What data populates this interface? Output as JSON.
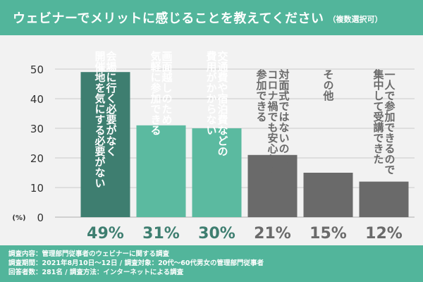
{
  "header": {
    "title": "ウェビナーでメリットに感じることを教えてください",
    "subtitle": "（複数選択可）"
  },
  "chart_data": {
    "type": "bar",
    "categories": [
      [
        "会場に行く必要がなく",
        "開催地を気にする必要がない"
      ],
      [
        "画面越しのため",
        "気軽に参加できる"
      ],
      [
        "交通費や宿泊費などの",
        "費用がかからない"
      ],
      [
        "対面式ではないので",
        "コロナ禍でも安心して",
        "参加できる"
      ],
      [
        "その他"
      ],
      [
        "一人で参加できるので",
        "集中して受講できた"
      ]
    ],
    "values": [
      49,
      31,
      30,
      21,
      15,
      12
    ],
    "value_labels": [
      "49%",
      "31%",
      "30%",
      "21%",
      "15%",
      "12%"
    ],
    "unit_label": "(%)",
    "yticks": [
      "0",
      "10",
      "20",
      "30",
      "40",
      "50"
    ],
    "ylim": [
      0,
      50
    ],
    "grid": true,
    "colors": {
      "bars": [
        "#3e7e70",
        "#5bbaa0",
        "#5bbaa0",
        "#6a6a6a",
        "#6a6a6a",
        "#6a6a6a"
      ],
      "value_labels": [
        "#3e7e70",
        "#3e7e70",
        "#3e7e70",
        "#6a6a6a",
        "#6a6a6a",
        "#6a6a6a"
      ],
      "bar_text": [
        "#ffffff",
        "#ffffff",
        "#ffffff",
        "#6a6a6a",
        "#6a6a6a",
        "#6a6a6a"
      ]
    }
  },
  "footer": {
    "line1": "調査内容：管理部門従事者のウェビナーに関する調査",
    "line2": "調査期間：2021年8月10日〜12日 / 調査対象：20代〜60代男女の管理部門従事者",
    "line3": "回答者数：281名 / 調査方法：インターネットによる調査"
  }
}
